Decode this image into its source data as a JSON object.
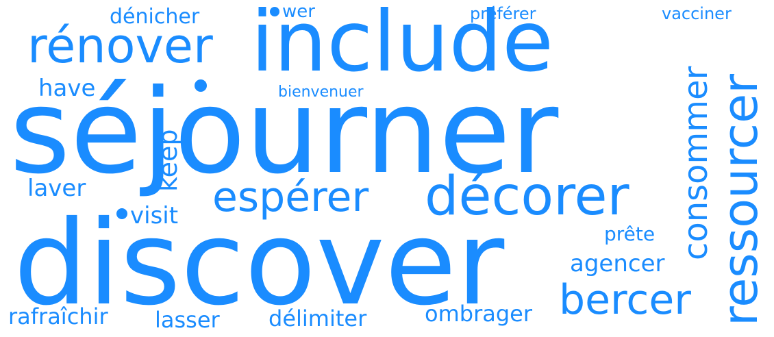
{
  "color": "#1a8cff",
  "background": "#ffffff",
  "words": {
    "sejourner": "séjourner",
    "discover": "discover",
    "include": "include",
    "renover": "rénover",
    "esperer": "espérer",
    "decorer": "décorer",
    "ressourcer": "ressourcer",
    "consommer": "consommer",
    "bercer": "bercer",
    "agencer": "agencer",
    "preter": "prête",
    "ombrager": "ombrager",
    "delimiter": "délimiter",
    "lasser": "lasser",
    "rafraichir": "rafraîchir",
    "laver": "laver",
    "visit": "visit",
    "keep": "keep",
    "have": "have",
    "bienvenuer": "bienvenuer",
    "denicher": "dénicher",
    "wer": "wer",
    "preferer": "préférer",
    "vacciner": "vacciner"
  }
}
